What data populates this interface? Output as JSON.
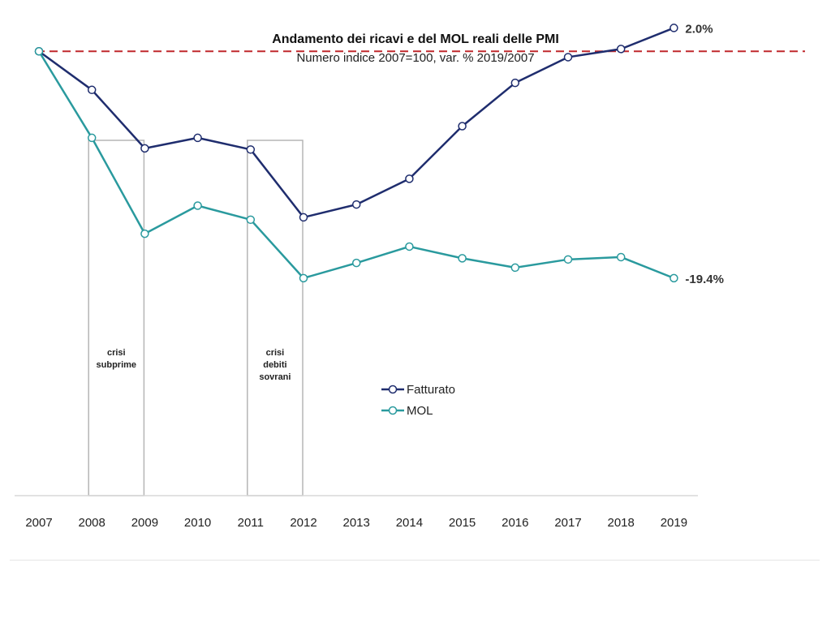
{
  "chart_data": {
    "type": "line",
    "title": "Andamento dei ricavi e del MOL reali delle PMI",
    "subtitle": "Numero indice 2007=100, var. % 2019/2007",
    "x": [
      "2007",
      "2008",
      "2009",
      "2010",
      "2011",
      "2012",
      "2013",
      "2014",
      "2015",
      "2016",
      "2017",
      "2018",
      "2019"
    ],
    "series": [
      {
        "name": "Fatturato",
        "color": "#1f2d6e",
        "values": [
          100,
          96.7,
          91.7,
          92.6,
          91.6,
          85.8,
          86.9,
          89.1,
          93.6,
          97.3,
          99.5,
          100.2,
          102.0
        ],
        "end_label": "2.0%"
      },
      {
        "name": "MOL",
        "color": "#2a9a9e",
        "values": [
          100,
          92.6,
          84.4,
          86.8,
          85.6,
          80.6,
          81.9,
          83.3,
          82.3,
          81.5,
          82.2,
          82.4,
          80.6
        ],
        "end_label": "-19.4%"
      }
    ],
    "reference_line": {
      "value": 100,
      "color": "#c0282d",
      "style": "dashed"
    },
    "annotations": [
      {
        "label": [
          "crisi",
          "subprime"
        ],
        "from": "2008",
        "to": "2009"
      },
      {
        "label": [
          "crisi",
          "debiti",
          "sovrani"
        ],
        "from": "2011",
        "to": "2012"
      }
    ],
    "ylim": [
      62,
      103
    ],
    "grid": false,
    "y_axis_visible": false,
    "legend_position": "center-right"
  }
}
